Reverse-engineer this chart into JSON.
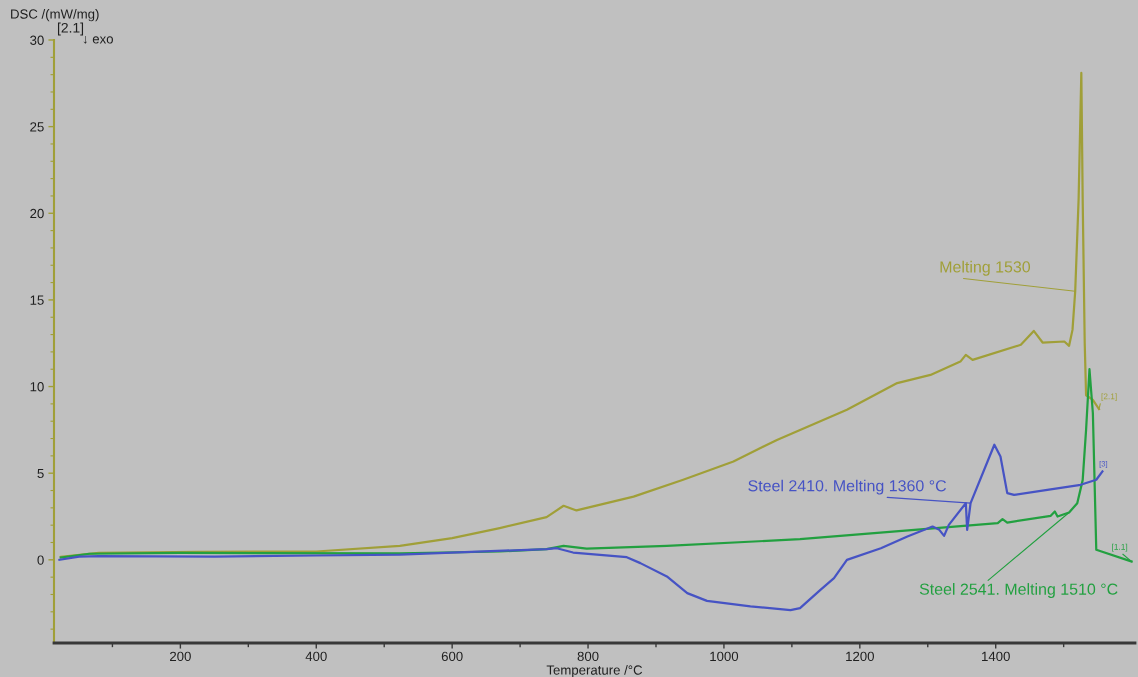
{
  "chart_data": {
    "type": "line",
    "xlabel": "Temperature /°C",
    "ylabel": "DSC /(mW/mg)",
    "xlim": [
      14,
      1605
    ],
    "ylim": [
      -4.8,
      30
    ],
    "xticks": [
      {
        "value": 100,
        "label": null
      },
      200,
      {
        "value": 300,
        "label": null
      },
      400,
      {
        "value": 500,
        "label": null
      },
      600,
      {
        "value": 700,
        "label": null
      },
      800,
      {
        "value": 900,
        "label": null
      },
      1000,
      {
        "value": 1100,
        "label": null
      },
      1200,
      {
        "value": 1300,
        "label": null
      },
      1400,
      {
        "value": 1500,
        "label": null
      }
    ],
    "yticks": [
      {
        "value": -4,
        "label": null
      },
      {
        "value": -3,
        "label": null
      },
      {
        "value": -2,
        "label": null
      },
      {
        "value": -1,
        "label": null
      },
      0,
      {
        "value": 1,
        "label": null
      },
      {
        "value": 2,
        "label": null
      },
      {
        "value": 3,
        "label": null
      },
      {
        "value": 4,
        "label": null
      },
      5,
      {
        "value": 6,
        "label": null
      },
      {
        "value": 7,
        "label": null
      },
      {
        "value": 8,
        "label": null
      },
      {
        "value": 9,
        "label": null
      },
      10,
      {
        "value": 11,
        "label": null
      },
      {
        "value": 12,
        "label": null
      },
      {
        "value": 13,
        "label": null
      },
      {
        "value": 14,
        "label": null
      },
      15,
      {
        "value": 16,
        "label": null
      },
      {
        "value": 17,
        "label": null
      },
      {
        "value": 18,
        "label": null
      },
      {
        "value": 19,
        "label": null
      },
      20,
      {
        "value": 21,
        "label": null
      },
      {
        "value": 22,
        "label": null
      },
      {
        "value": 23,
        "label": null
      },
      {
        "value": 24,
        "label": null
      },
      25,
      {
        "value": 26,
        "label": null
      },
      {
        "value": 27,
        "label": null
      },
      {
        "value": 28,
        "label": null
      },
      {
        "value": 29,
        "label": null
      },
      30
    ],
    "line_style": "solid",
    "series": [
      {
        "color": "#a09f38",
        "x": [
          24,
          80,
          228,
          400,
          523,
          600,
          670,
          739,
          764,
          783,
          867,
          940,
          1014,
          1078,
          1181,
          1255,
          1304,
          1348,
          1356,
          1366,
          1437,
          1456,
          1469,
          1501,
          1508,
          1513,
          1517,
          1522,
          1526,
          1528,
          1531,
          1533,
          1543,
          1552
        ],
        "values": [
          0.17,
          0.4,
          0.46,
          0.48,
          0.8,
          1.25,
          1.83,
          2.46,
          3.12,
          2.85,
          3.65,
          4.62,
          5.67,
          6.92,
          8.66,
          10.2,
          10.67,
          11.44,
          11.83,
          11.54,
          12.41,
          13.21,
          12.54,
          12.6,
          12.35,
          13.27,
          15.5,
          20.8,
          28.1,
          20.8,
          12.5,
          9.5,
          9.23,
          8.7
        ]
      },
      {
        "color": "#22a040",
        "x": [
          24,
          66,
          200,
          523,
          670,
          739,
          764,
          798,
          916,
          1112,
          1403,
          1410,
          1417,
          1481,
          1487,
          1491,
          1508,
          1520,
          1528,
          1533,
          1538,
          1543,
          1548,
          1600
        ],
        "values": [
          0.13,
          0.35,
          0.4,
          0.37,
          0.48,
          0.62,
          0.81,
          0.65,
          0.81,
          1.19,
          2.12,
          2.35,
          2.15,
          2.54,
          2.79,
          2.5,
          2.73,
          3.27,
          4.6,
          7.5,
          11.0,
          8.46,
          0.58,
          -0.1
        ]
      },
      {
        "color": "#4653c4",
        "x": [
          22,
          51,
          80,
          250,
          400,
          523,
          739,
          754,
          778,
          857,
          877,
          916,
          946,
          975,
          1039,
          1098,
          1112,
          1142,
          1162,
          1181,
          1231,
          1270,
          1307,
          1317,
          1324,
          1331,
          1356,
          1358,
          1363,
          1398,
          1407,
          1417,
          1427,
          1476,
          1525,
          1548,
          1557
        ],
        "values": [
          0.0,
          0.19,
          0.22,
          0.19,
          0.25,
          0.3,
          0.62,
          0.67,
          0.42,
          0.15,
          -0.19,
          -0.96,
          -1.92,
          -2.37,
          -2.69,
          -2.9,
          -2.79,
          -1.73,
          -1.06,
          0.0,
          0.67,
          1.35,
          1.92,
          1.73,
          1.38,
          2.02,
          3.27,
          1.73,
          3.27,
          6.64,
          5.96,
          3.85,
          3.75,
          4.04,
          4.33,
          4.62,
          5.1
        ]
      }
    ],
    "annotations": [
      {
        "text": "Melting 1530",
        "x": 1517,
        "y": 15.5
      },
      {
        "text": "Steel 2410. Melting 1360 °C",
        "x": 1363,
        "y": 3.27
      },
      {
        "text": "Steel 2541. Melting 1510 °C",
        "x": 1508,
        "y": 2.73
      },
      {
        "text": "[2.1]",
        "x": 1552,
        "y": 8.7
      },
      {
        "text": "[3]",
        "x": 1557,
        "y": 5.1
      },
      {
        "text": "[1.1]",
        "x": 1600,
        "y": -0.1
      },
      "[2.1]",
      "↓ exo"
    ]
  }
}
